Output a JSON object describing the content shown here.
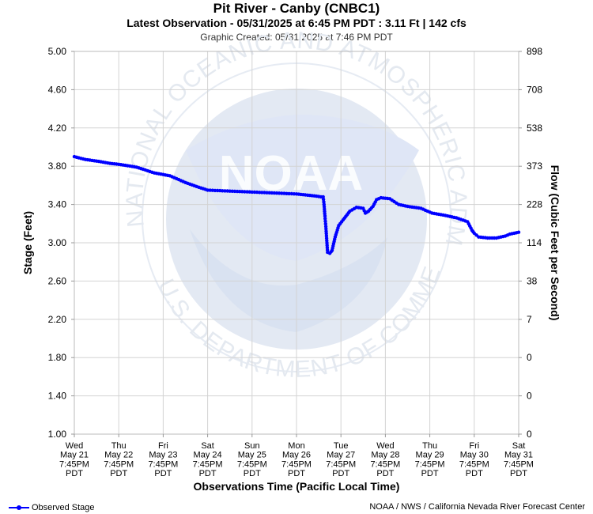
{
  "header": {
    "title": "Pit River - Canby (CNBC1)",
    "latest": "Latest Observation - 05/31/2025 at 6:45 PM PDT : 3.11 Ft | 142 cfs",
    "created": "Graphic Created: 05/31/2025 at 7:46 PM PDT"
  },
  "footer": {
    "credit": "NOAA / NWS / California Nevada River Forecast Center",
    "legend_label": "Observed Stage"
  },
  "colors": {
    "series": "#0000ff",
    "grid": "#d3d3d3",
    "watermark": "#dfe6f1"
  },
  "watermark": {
    "logo_text": "NOAA",
    "ring_top": "NATIONAL OCEANIC AND ATMOSPHERIC ADMINISTRATION",
    "ring_bottom": "U.S. DEPARTMENT OF COMMERCE"
  },
  "chart_data": {
    "type": "line",
    "xlabel": "Observations Time (Pacific Local Time)",
    "ylabel": "Stage (Feet)",
    "y2label": "Flow (Cubic Feet per Second)",
    "ylim": [
      1.0,
      5.0
    ],
    "xlim": [
      0,
      10
    ],
    "yticks": [
      "1.00",
      "1.40",
      "1.80",
      "2.20",
      "2.60",
      "3.00",
      "3.40",
      "3.80",
      "4.20",
      "4.60",
      "5.00"
    ],
    "y2ticks": [
      "0",
      "0",
      "0",
      "7",
      "38",
      "114",
      "228",
      "373",
      "538",
      "708",
      "898"
    ],
    "xticks": [
      [
        "Wed",
        "May 21",
        "7:45PM",
        "PDT"
      ],
      [
        "Thu",
        "May 22",
        "7:45PM",
        "PDT"
      ],
      [
        "Fri",
        "May 23",
        "7:45PM",
        "PDT"
      ],
      [
        "Sat",
        "May 24",
        "7:45PM",
        "PDT"
      ],
      [
        "Sun",
        "May 25",
        "7:45PM",
        "PDT"
      ],
      [
        "Mon",
        "May 26",
        "7:45PM",
        "PDT"
      ],
      [
        "Tue",
        "May 27",
        "7:45PM",
        "PDT"
      ],
      [
        "Wed",
        "May 28",
        "7:45PM",
        "PDT"
      ],
      [
        "Thu",
        "May 29",
        "7:45PM",
        "PDT"
      ],
      [
        "Fri",
        "May 30",
        "7:45PM",
        "PDT"
      ],
      [
        "Sat",
        "May 31",
        "7:45PM",
        "PDT"
      ]
    ],
    "grid": true,
    "legend": "bottom-left",
    "series": [
      {
        "name": "Observed Stage",
        "x": [
          0.0,
          0.25,
          0.55,
          0.8,
          1.0,
          1.4,
          1.8,
          2.15,
          2.5,
          2.8,
          3.0,
          3.5,
          4.0,
          4.5,
          5.0,
          5.4,
          5.55,
          5.6,
          5.62,
          5.64,
          5.66,
          5.7,
          5.75,
          5.8,
          5.87,
          5.95,
          6.05,
          6.2,
          6.35,
          6.5,
          6.55,
          6.62,
          6.72,
          6.8,
          6.9,
          7.1,
          7.3,
          7.5,
          7.8,
          8.05,
          8.3,
          8.6,
          8.85,
          8.95,
          9.0,
          9.1,
          9.3,
          9.5,
          9.7,
          9.8,
          9.9,
          10.0
        ],
        "y": [
          3.9,
          3.87,
          3.85,
          3.83,
          3.82,
          3.79,
          3.73,
          3.7,
          3.63,
          3.58,
          3.55,
          3.54,
          3.53,
          3.52,
          3.51,
          3.49,
          3.48,
          3.48,
          3.4,
          3.28,
          3.17,
          2.9,
          2.89,
          2.92,
          3.06,
          3.18,
          3.24,
          3.33,
          3.37,
          3.36,
          3.31,
          3.33,
          3.38,
          3.45,
          3.47,
          3.46,
          3.4,
          3.38,
          3.36,
          3.31,
          3.29,
          3.26,
          3.22,
          3.13,
          3.1,
          3.06,
          3.05,
          3.05,
          3.07,
          3.09,
          3.1,
          3.11
        ]
      }
    ]
  }
}
